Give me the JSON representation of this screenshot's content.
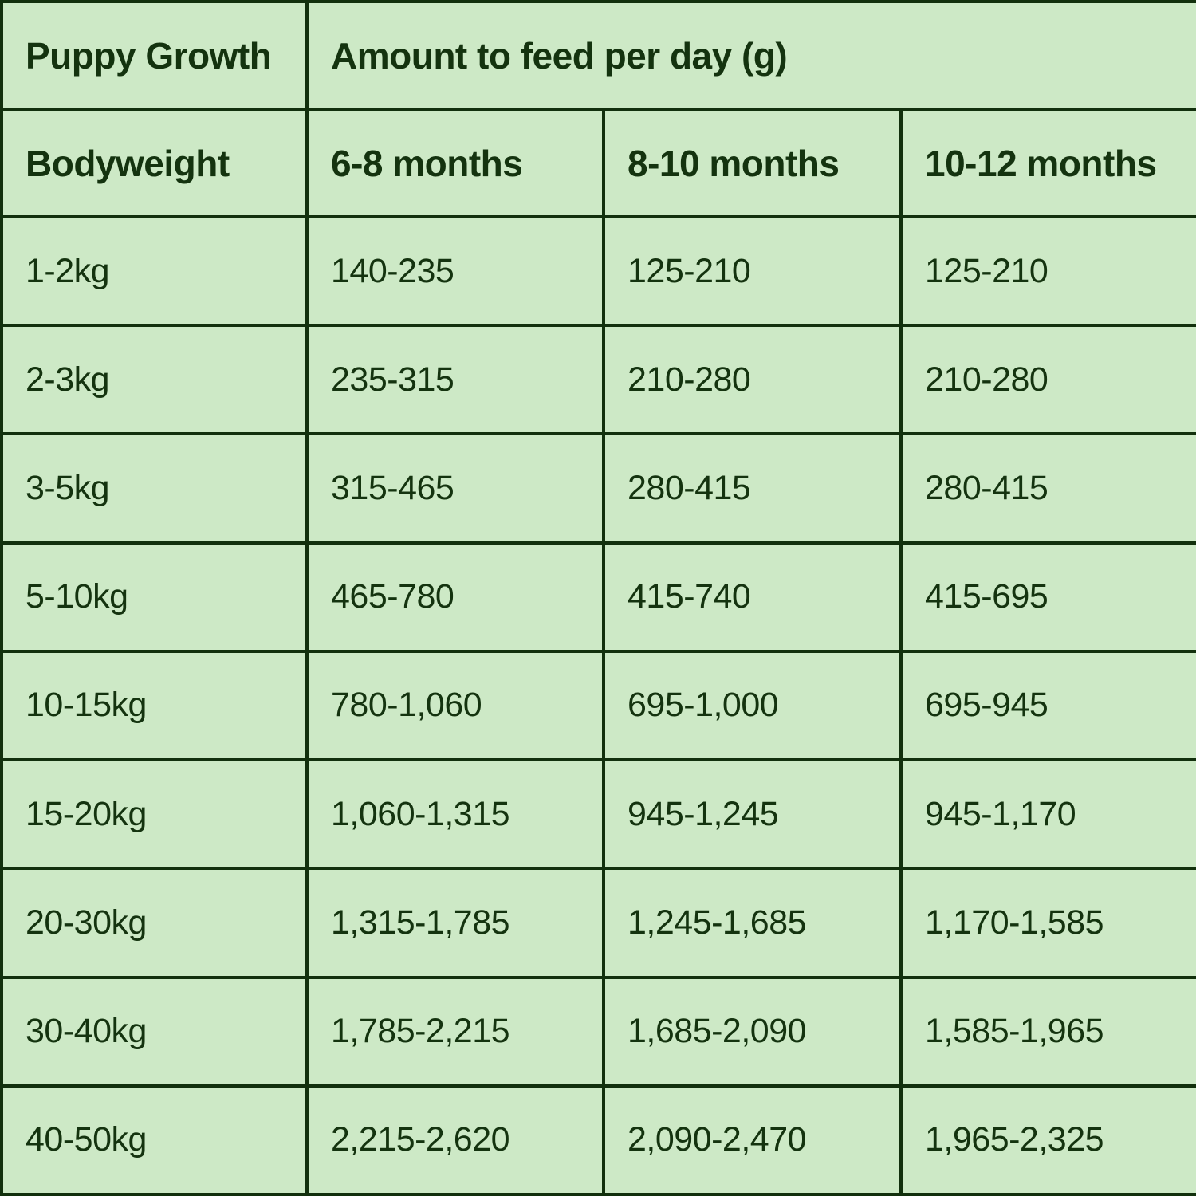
{
  "colors": {
    "background": "#cde9c6",
    "text": "#14330f",
    "border": "#12300d"
  },
  "chart_data": {
    "type": "table",
    "title": "Puppy Growth",
    "corner_header": "Puppy Growth",
    "group_header": "Amount to feed per day (g)",
    "columns": [
      "Bodyweight",
      "6-8 months",
      "8-10 months",
      "10-12 months"
    ],
    "rows": [
      [
        "1-2kg",
        "140-235",
        "125-210",
        "125-210"
      ],
      [
        "2-3kg",
        "235-315",
        "210-280",
        "210-280"
      ],
      [
        "3-5kg",
        "315-465",
        "280-415",
        "280-415"
      ],
      [
        "5-10kg",
        "465-780",
        "415-740",
        "415-695"
      ],
      [
        "10-15kg",
        "780-1,060",
        "695-1,000",
        "695-945"
      ],
      [
        "15-20kg",
        "1,060-1,315",
        "945-1,245",
        "945-1,170"
      ],
      [
        "20-30kg",
        "1,315-1,785",
        "1,245-1,685",
        "1,170-1,585"
      ],
      [
        "30-40kg",
        "1,785-2,215",
        "1,685-2,090",
        "1,585-1,965"
      ],
      [
        "40-50kg",
        "2,215-2,620",
        "2,090-2,470",
        "1,965-2,325"
      ]
    ]
  }
}
